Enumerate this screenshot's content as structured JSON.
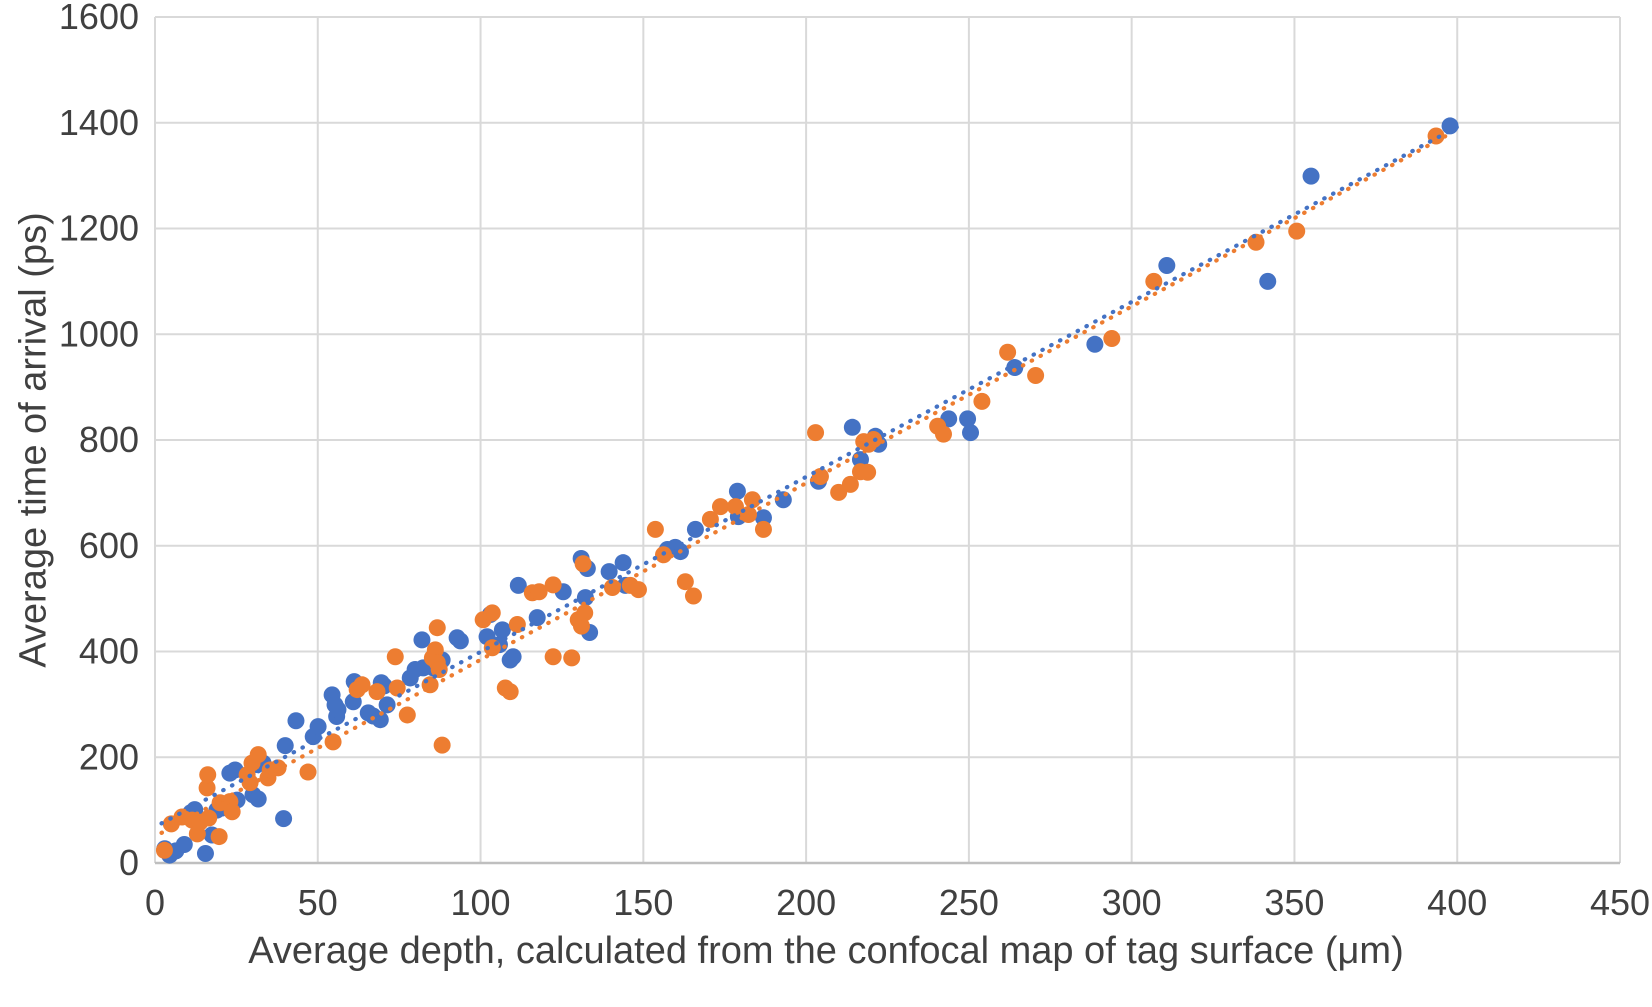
{
  "chart_data": {
    "type": "scatter",
    "title": "",
    "xlabel": "Average depth, calculated from the confocal map of tag surface (μm)",
    "ylabel": "Average time of arrival (ps)",
    "xlim": [
      0,
      450
    ],
    "ylim": [
      0,
      1600
    ],
    "x_ticks": [
      0,
      50,
      100,
      150,
      200,
      250,
      300,
      350,
      400,
      450
    ],
    "y_ticks": [
      0,
      200,
      400,
      600,
      800,
      1000,
      1200,
      1400,
      1600
    ],
    "grid": true,
    "grid_color": "#d9d9d9",
    "axis_line_color": "#bfbfbf",
    "tick_label_color": "#404040",
    "legend": "none",
    "series": [
      {
        "name": "series-1-blue",
        "color": "#4472C4",
        "points": [
          [
            3,
            27
          ],
          [
            4.5,
            15
          ],
          [
            6.4,
            23
          ],
          [
            9,
            35
          ],
          [
            11,
            95
          ],
          [
            12.2,
            101
          ],
          [
            15.5,
            18
          ],
          [
            17.5,
            53
          ],
          [
            19,
            100
          ],
          [
            20.6,
            104
          ],
          [
            23,
            170
          ],
          [
            24.6,
            176
          ],
          [
            25.2,
            119
          ],
          [
            30.1,
            129
          ],
          [
            31.7,
            121
          ],
          [
            31.4,
            186
          ],
          [
            33.2,
            189
          ],
          [
            39.5,
            84
          ],
          [
            40,
            222
          ],
          [
            43.3,
            269
          ],
          [
            48.6,
            239
          ],
          [
            50.1,
            258
          ],
          [
            54.4,
            318
          ],
          [
            55.3,
            299
          ],
          [
            55.8,
            277
          ],
          [
            56.2,
            290
          ],
          [
            60.9,
            305
          ],
          [
            61.2,
            343
          ],
          [
            65.5,
            284
          ],
          [
            67,
            278
          ],
          [
            69.2,
            271
          ],
          [
            69.5,
            341
          ],
          [
            70.4,
            335
          ],
          [
            71.3,
            299
          ],
          [
            78.4,
            350
          ],
          [
            79.9,
            366
          ],
          [
            82.4,
            369
          ],
          [
            82,
            422
          ],
          [
            85.5,
            369
          ],
          [
            87.6,
            381
          ],
          [
            88.2,
            384
          ],
          [
            92.8,
            426
          ],
          [
            93.8,
            420
          ],
          [
            102,
            428
          ],
          [
            103,
            470
          ],
          [
            105.8,
            413
          ],
          [
            106.7,
            441
          ],
          [
            109.1,
            384
          ],
          [
            110,
            390
          ],
          [
            111.6,
            525
          ],
          [
            117.4,
            464
          ],
          [
            125.4,
            513
          ],
          [
            130.9,
            576
          ],
          [
            132.8,
            557
          ],
          [
            132.2,
            502
          ],
          [
            133.5,
            436
          ],
          [
            139.5,
            551
          ],
          [
            143.8,
            568
          ],
          [
            144.5,
            525
          ],
          [
            157.4,
            593
          ],
          [
            159.8,
            597
          ],
          [
            161.4,
            589
          ],
          [
            166,
            631
          ],
          [
            178.9,
            703
          ],
          [
            179.2,
            655
          ],
          [
            186.9,
            653
          ],
          [
            193,
            687
          ],
          [
            203.8,
            722
          ],
          [
            214.2,
            824
          ],
          [
            216.7,
            763
          ],
          [
            221.3,
            807
          ],
          [
            222.3,
            792
          ],
          [
            243.8,
            840
          ],
          [
            249.6,
            840
          ],
          [
            250.5,
            814
          ],
          [
            264.1,
            937
          ],
          [
            288.7,
            981
          ],
          [
            310.8,
            1130
          ],
          [
            341.8,
            1100
          ],
          [
            355.1,
            1299
          ],
          [
            397.8,
            1394
          ]
        ]
      },
      {
        "name": "series-2-orange",
        "color": "#ED7D31",
        "points": [
          [
            2.9,
            24
          ],
          [
            5,
            74
          ],
          [
            8.3,
            87
          ],
          [
            11.4,
            81
          ],
          [
            13,
            55
          ],
          [
            13.8,
            77
          ],
          [
            16,
            142
          ],
          [
            16.2,
            167
          ],
          [
            16.5,
            85
          ],
          [
            19.7,
            50
          ],
          [
            20,
            114
          ],
          [
            23,
            116
          ],
          [
            23.7,
            97
          ],
          [
            28.3,
            167
          ],
          [
            29.2,
            152
          ],
          [
            29.8,
            189
          ],
          [
            31.7,
            205
          ],
          [
            34.7,
            161
          ],
          [
            35.4,
            176
          ],
          [
            37.8,
            180
          ],
          [
            47,
            172
          ],
          [
            54.7,
            229
          ],
          [
            62.1,
            328
          ],
          [
            63.6,
            337
          ],
          [
            68.2,
            324
          ],
          [
            73.8,
            390
          ],
          [
            74.4,
            331
          ],
          [
            77.5,
            280
          ],
          [
            84.5,
            337
          ],
          [
            85.2,
            388
          ],
          [
            86.1,
            403
          ],
          [
            86.7,
            445
          ],
          [
            86.7,
            379
          ],
          [
            87.3,
            366
          ],
          [
            88.2,
            223
          ],
          [
            100.8,
            460
          ],
          [
            103.6,
            473
          ],
          [
            103.6,
            407
          ],
          [
            107.6,
            331
          ],
          [
            109.1,
            324
          ],
          [
            111.3,
            451
          ],
          [
            115.9,
            511
          ],
          [
            118,
            513
          ],
          [
            122.3,
            526
          ],
          [
            122.3,
            390
          ],
          [
            128,
            388
          ],
          [
            130,
            460
          ],
          [
            131,
            448
          ],
          [
            131.5,
            566
          ],
          [
            132,
            473
          ],
          [
            140.5,
            521
          ],
          [
            146,
            525
          ],
          [
            148.5,
            517
          ],
          [
            153.7,
            631
          ],
          [
            156.2,
            583
          ],
          [
            162.9,
            532
          ],
          [
            165.4,
            505
          ],
          [
            170.6,
            650
          ],
          [
            173.7,
            674
          ],
          [
            178.3,
            674
          ],
          [
            182.3,
            659
          ],
          [
            183.5,
            687
          ],
          [
            186.9,
            631
          ],
          [
            202.9,
            814
          ],
          [
            204.4,
            731
          ],
          [
            210,
            701
          ],
          [
            213.6,
            716
          ],
          [
            216.7,
            740
          ],
          [
            218.9,
            739
          ],
          [
            217.7,
            797
          ],
          [
            219.2,
            792
          ],
          [
            220.7,
            801
          ],
          [
            240.4,
            826
          ],
          [
            242.2,
            811
          ],
          [
            254,
            873
          ],
          [
            261.9,
            966
          ],
          [
            270.5,
            922
          ],
          [
            293.9,
            992
          ],
          [
            306.8,
            1100
          ],
          [
            338.2,
            1174
          ],
          [
            350.7,
            1195
          ],
          [
            393.5,
            1375
          ]
        ]
      }
    ],
    "trendlines": [
      {
        "name": "trendline-series-1",
        "color": "#4472C4",
        "style": "dotted",
        "x1": 2,
        "y1": 75,
        "x2": 400,
        "y2": 1392
      },
      {
        "name": "trendline-series-2",
        "color": "#ED7D31",
        "style": "dotted",
        "x1": 2,
        "y1": 57,
        "x2": 398,
        "y2": 1380
      }
    ]
  }
}
